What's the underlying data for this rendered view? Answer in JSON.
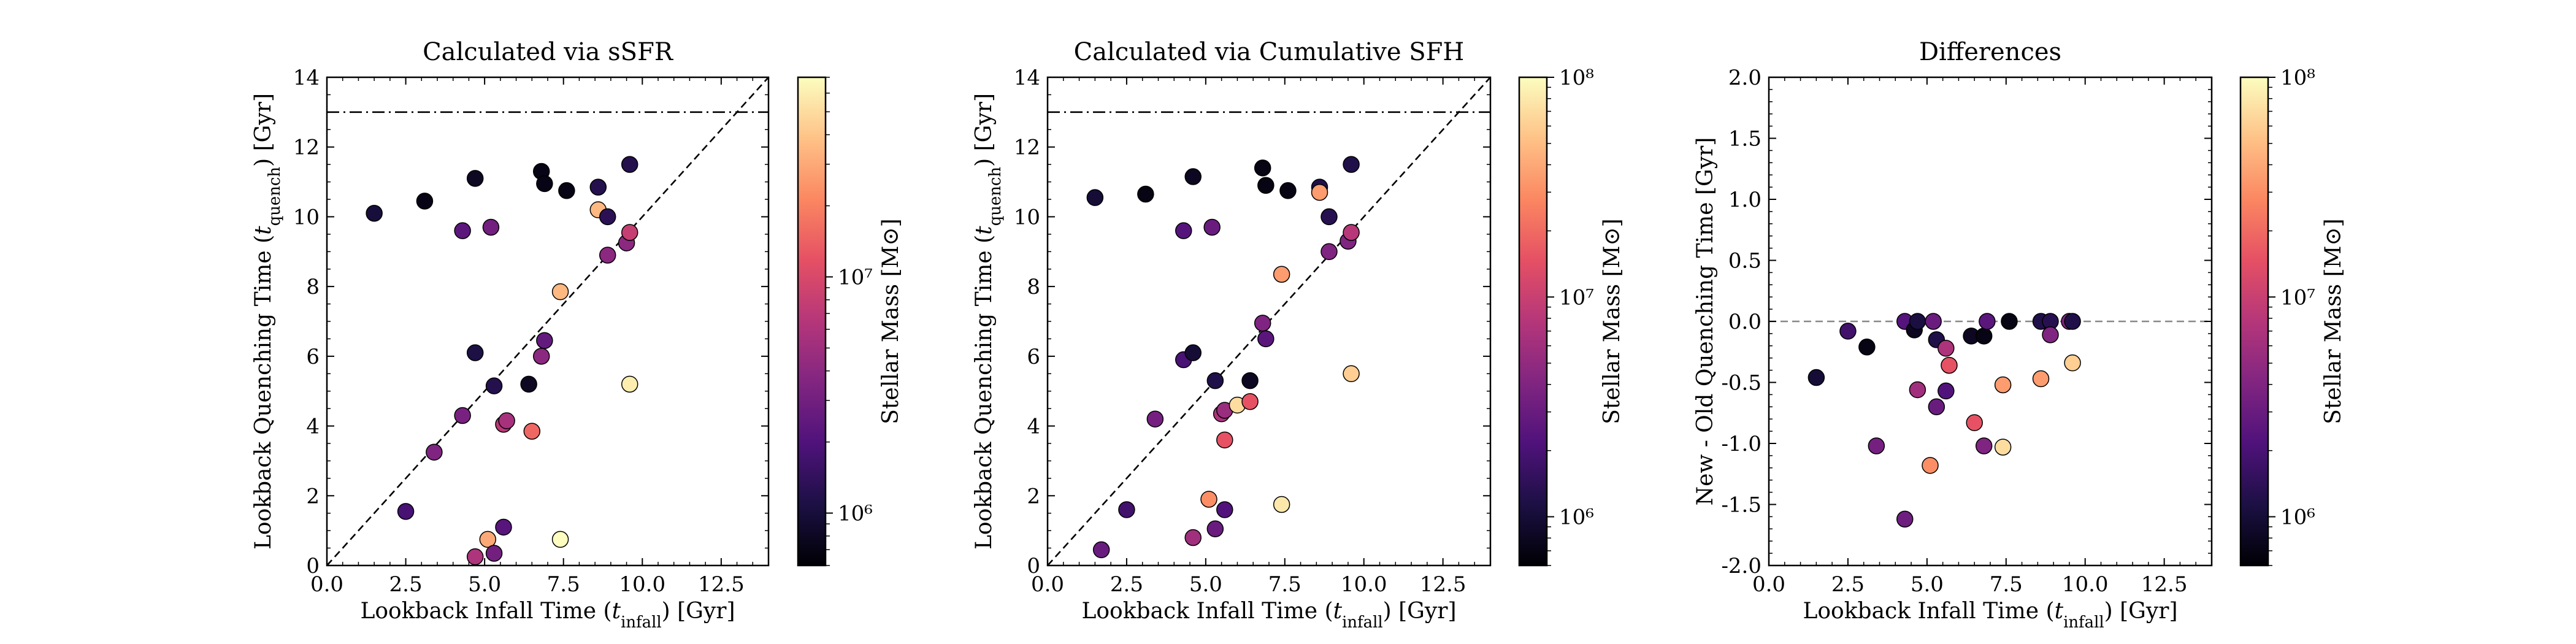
{
  "colorbar_label": "Stellar Mass [M⊙]",
  "colorbar_ticks": [
    "10⁶",
    "10⁷",
    "10⁸"
  ],
  "chart_data": [
    {
      "type": "scatter",
      "title": "Calculated via sSFR",
      "xlabel": "Lookback Infall Time (t_infall) [Gyr]",
      "ylabel": "Lookback Quenching Time (t_quench) [Gyr]",
      "xlim": [
        0,
        14
      ],
      "ylim": [
        0,
        14
      ],
      "xticks": [
        0,
        2.5,
        5,
        7.5,
        10,
        12.5
      ],
      "yticks": [
        0,
        2,
        4,
        6,
        8,
        10,
        12,
        14
      ],
      "reference_lines": [
        {
          "kind": "horizontal",
          "style": "dashdot",
          "y": 13
        },
        {
          "kind": "diagonal",
          "style": "dashed",
          "slope": 1
        }
      ],
      "colorbar": {
        "label": "Stellar Mass [M⊙]",
        "scale": "log",
        "range": [
          600000.0,
          70000000.0
        ]
      },
      "points": [
        {
          "x": 1.5,
          "y": 10.1,
          "mass": 1000000.0
        },
        {
          "x": 2.5,
          "y": 1.55,
          "mass": 1800000.0
        },
        {
          "x": 3.1,
          "y": 10.45,
          "mass": 700000.0
        },
        {
          "x": 3.4,
          "y": 3.25,
          "mass": 3500000.0
        },
        {
          "x": 4.3,
          "y": 9.6,
          "mass": 2300000.0
        },
        {
          "x": 4.3,
          "y": 4.3,
          "mass": 3200000.0
        },
        {
          "x": 4.7,
          "y": 11.1,
          "mass": 800000.0
        },
        {
          "x": 4.7,
          "y": 6.1,
          "mass": 1100000.0
        },
        {
          "x": 4.7,
          "y": 0.25,
          "mass": 6000000.0
        },
        {
          "x": 5.1,
          "y": 0.75,
          "mass": 30000000.0
        },
        {
          "x": 5.2,
          "y": 9.7,
          "mass": 3000000.0
        },
        {
          "x": 5.3,
          "y": 5.15,
          "mass": 1200000.0
        },
        {
          "x": 5.3,
          "y": 0.35,
          "mass": 3000000.0
        },
        {
          "x": 5.6,
          "y": 4.05,
          "mass": 7000000.0
        },
        {
          "x": 5.6,
          "y": 1.1,
          "mass": 2200000.0
        },
        {
          "x": 5.7,
          "y": 4.15,
          "mass": 5500000.0
        },
        {
          "x": 6.4,
          "y": 5.2,
          "mass": 800000.0
        },
        {
          "x": 6.5,
          "y": 3.85,
          "mass": 15000000.0
        },
        {
          "x": 6.8,
          "y": 11.3,
          "mass": 700000.0
        },
        {
          "x": 6.8,
          "y": 6.0,
          "mass": 4000000.0
        },
        {
          "x": 6.9,
          "y": 6.45,
          "mass": 2500000.0
        },
        {
          "x": 6.9,
          "y": 10.95,
          "mass": 700000.0
        },
        {
          "x": 7.4,
          "y": 7.85,
          "mass": 35000000.0
        },
        {
          "x": 7.4,
          "y": 0.75,
          "mass": 70000000.0
        },
        {
          "x": 7.6,
          "y": 10.75,
          "mass": 700000.0
        },
        {
          "x": 8.6,
          "y": 10.2,
          "mass": 35000000.0
        },
        {
          "x": 8.6,
          "y": 10.85,
          "mass": 1200000.0
        },
        {
          "x": 8.9,
          "y": 10.0,
          "mass": 1300000.0
        },
        {
          "x": 8.9,
          "y": 8.9,
          "mass": 4000000.0
        },
        {
          "x": 9.5,
          "y": 9.25,
          "mass": 4000000.0
        },
        {
          "x": 9.6,
          "y": 11.5,
          "mass": 1200000.0
        },
        {
          "x": 9.6,
          "y": 9.55,
          "mass": 8000000.0
        },
        {
          "x": 9.6,
          "y": 5.2,
          "mass": 60000000.0
        }
      ]
    },
    {
      "type": "scatter",
      "title": "Calculated via Cumulative SFH",
      "xlabel": "Lookback Infall Time (t_infall) [Gyr]",
      "ylabel": "Lookback Quenching Time (t_quench) [Gyr]",
      "xlim": [
        0,
        14
      ],
      "ylim": [
        0,
        14
      ],
      "xticks": [
        0,
        2.5,
        5,
        7.5,
        10,
        12.5
      ],
      "yticks": [
        0,
        2,
        4,
        6,
        8,
        10,
        12,
        14
      ],
      "reference_lines": [
        {
          "kind": "horizontal",
          "style": "dashdot",
          "y": 13
        },
        {
          "kind": "diagonal",
          "style": "dashed",
          "slope": 1
        }
      ],
      "colorbar": {
        "label": "Stellar Mass [M⊙]",
        "scale": "log",
        "range": [
          600000.0,
          100000000.0
        ]
      },
      "points": [
        {
          "x": 1.5,
          "y": 10.55,
          "mass": 1000000.0
        },
        {
          "x": 1.7,
          "y": 0.45,
          "mass": 3000000.0
        },
        {
          "x": 2.5,
          "y": 1.6,
          "mass": 1800000.0
        },
        {
          "x": 3.1,
          "y": 10.65,
          "mass": 700000.0
        },
        {
          "x": 3.4,
          "y": 4.2,
          "mass": 3500000.0
        },
        {
          "x": 4.3,
          "y": 9.6,
          "mass": 2300000.0
        },
        {
          "x": 4.3,
          "y": 5.9,
          "mass": 2000000.0
        },
        {
          "x": 4.6,
          "y": 6.1,
          "mass": 1000000.0
        },
        {
          "x": 4.6,
          "y": 11.15,
          "mass": 800000.0
        },
        {
          "x": 4.6,
          "y": 0.8,
          "mass": 6000000.0
        },
        {
          "x": 5.1,
          "y": 1.9,
          "mass": 30000000.0
        },
        {
          "x": 5.2,
          "y": 9.7,
          "mass": 3000000.0
        },
        {
          "x": 5.3,
          "y": 5.3,
          "mass": 1200000.0
        },
        {
          "x": 5.3,
          "y": 1.05,
          "mass": 3000000.0
        },
        {
          "x": 5.5,
          "y": 4.35,
          "mass": 7000000.0
        },
        {
          "x": 5.6,
          "y": 4.45,
          "mass": 5500000.0
        },
        {
          "x": 5.6,
          "y": 3.6,
          "mass": 15000000.0
        },
        {
          "x": 5.6,
          "y": 1.6,
          "mass": 2200000.0
        },
        {
          "x": 6.0,
          "y": 4.6,
          "mass": 70000000.0
        },
        {
          "x": 6.4,
          "y": 5.3,
          "mass": 800000.0
        },
        {
          "x": 6.4,
          "y": 4.7,
          "mass": 15000000.0
        },
        {
          "x": 6.8,
          "y": 11.4,
          "mass": 700000.0
        },
        {
          "x": 6.8,
          "y": 6.95,
          "mass": 4000000.0
        },
        {
          "x": 6.9,
          "y": 6.5,
          "mass": 2500000.0
        },
        {
          "x": 6.9,
          "y": 10.9,
          "mass": 700000.0
        },
        {
          "x": 7.4,
          "y": 8.35,
          "mass": 35000000.0
        },
        {
          "x": 7.4,
          "y": 1.75,
          "mass": 80000000.0
        },
        {
          "x": 7.6,
          "y": 10.75,
          "mass": 700000.0
        },
        {
          "x": 8.6,
          "y": 10.85,
          "mass": 1200000.0
        },
        {
          "x": 8.6,
          "y": 10.7,
          "mass": 35000000.0
        },
        {
          "x": 8.9,
          "y": 10.0,
          "mass": 1300000.0
        },
        {
          "x": 8.9,
          "y": 9.0,
          "mass": 4000000.0
        },
        {
          "x": 9.5,
          "y": 9.3,
          "mass": 4000000.0
        },
        {
          "x": 9.6,
          "y": 11.5,
          "mass": 1200000.0
        },
        {
          "x": 9.6,
          "y": 9.55,
          "mass": 8000000.0
        },
        {
          "x": 9.6,
          "y": 5.5,
          "mass": 60000000.0
        }
      ]
    },
    {
      "type": "scatter",
      "title": "Differences",
      "xlabel": "Lookback Infall Time (t_infall) [Gyr]",
      "ylabel": "New - Old Quenching Time [Gyr]",
      "xlim": [
        0,
        14
      ],
      "ylim": [
        -2,
        2
      ],
      "xticks": [
        0,
        2.5,
        5,
        7.5,
        10,
        12.5
      ],
      "yticks": [
        -2.0,
        -1.5,
        -1.0,
        -0.5,
        0.0,
        0.5,
        1.0,
        1.5,
        2.0
      ],
      "reference_lines": [
        {
          "kind": "horizontal",
          "style": "dashed",
          "y": 0
        }
      ],
      "colorbar": {
        "label": "Stellar Mass [M⊙]",
        "scale": "log",
        "range": [
          600000.0,
          100000000.0
        ]
      },
      "points": [
        {
          "x": 1.5,
          "y": -0.46,
          "mass": 1000000.0
        },
        {
          "x": 2.5,
          "y": -0.08,
          "mass": 1800000.0
        },
        {
          "x": 3.1,
          "y": -0.21,
          "mass": 700000.0
        },
        {
          "x": 3.4,
          "y": -1.02,
          "mass": 3500000.0
        },
        {
          "x": 4.3,
          "y": 0.0,
          "mass": 2300000.0
        },
        {
          "x": 4.3,
          "y": -1.62,
          "mass": 3200000.0
        },
        {
          "x": 4.6,
          "y": -0.07,
          "mass": 800000.0
        },
        {
          "x": 4.7,
          "y": 0.0,
          "mass": 1100000.0
        },
        {
          "x": 4.7,
          "y": -0.56,
          "mass": 6000000.0
        },
        {
          "x": 5.1,
          "y": -1.18,
          "mass": 30000000.0
        },
        {
          "x": 5.2,
          "y": 0.0,
          "mass": 3000000.0
        },
        {
          "x": 5.3,
          "y": -0.15,
          "mass": 1200000.0
        },
        {
          "x": 5.3,
          "y": -0.7,
          "mass": 3000000.0
        },
        {
          "x": 5.6,
          "y": -0.22,
          "mass": 7000000.0
        },
        {
          "x": 5.6,
          "y": -0.57,
          "mass": 2200000.0
        },
        {
          "x": 5.7,
          "y": -0.36,
          "mass": 15000000.0
        },
        {
          "x": 6.4,
          "y": -0.12,
          "mass": 800000.0
        },
        {
          "x": 6.5,
          "y": -0.83,
          "mass": 15000000.0
        },
        {
          "x": 6.8,
          "y": -0.12,
          "mass": 700000.0
        },
        {
          "x": 6.8,
          "y": -1.02,
          "mass": 4000000.0
        },
        {
          "x": 6.9,
          "y": 0.0,
          "mass": 2500000.0
        },
        {
          "x": 7.4,
          "y": -0.52,
          "mass": 35000000.0
        },
        {
          "x": 7.4,
          "y": -1.03,
          "mass": 70000000.0
        },
        {
          "x": 7.6,
          "y": 0.0,
          "mass": 700000.0
        },
        {
          "x": 8.6,
          "y": -0.47,
          "mass": 35000000.0
        },
        {
          "x": 8.6,
          "y": 0.0,
          "mass": 1200000.0
        },
        {
          "x": 8.9,
          "y": 0.0,
          "mass": 1300000.0
        },
        {
          "x": 8.9,
          "y": -0.11,
          "mass": 4000000.0
        },
        {
          "x": 9.5,
          "y": 0.0,
          "mass": 4000000.0
        },
        {
          "x": 9.6,
          "y": 0.0,
          "mass": 1200000.0
        },
        {
          "x": 9.6,
          "y": -0.34,
          "mass": 60000000.0
        }
      ]
    }
  ]
}
